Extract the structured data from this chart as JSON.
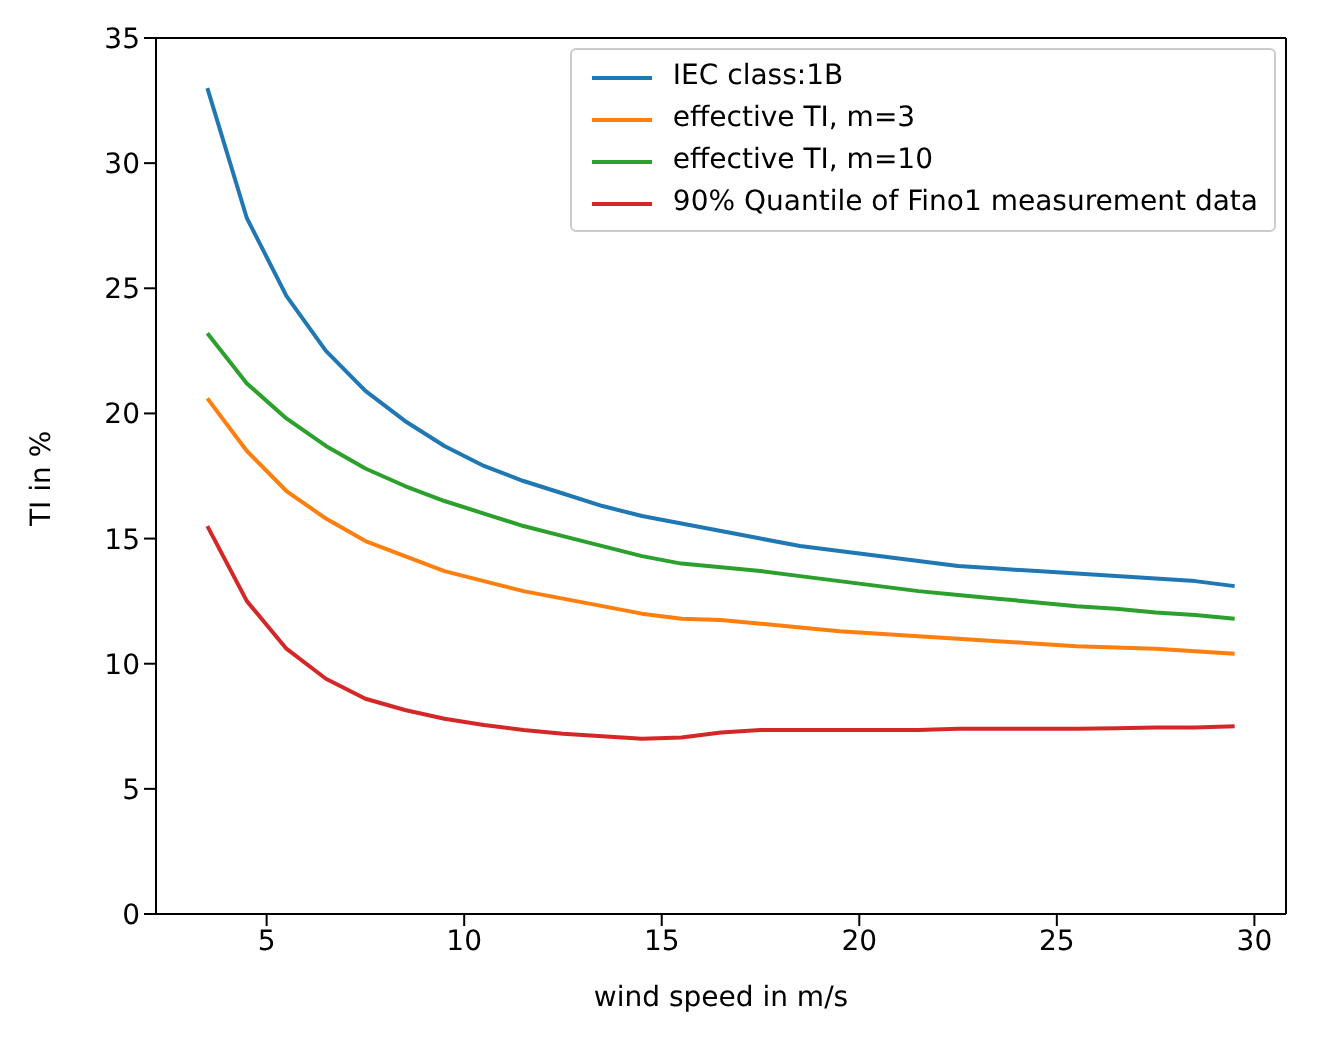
{
  "chart_data": {
    "type": "line",
    "xlabel": "wind speed in m/s",
    "ylabel": "TI in %",
    "x": [
      3.5,
      4.5,
      5.5,
      6.5,
      7.5,
      8.5,
      9.5,
      10.5,
      11.5,
      12.5,
      13.5,
      14.5,
      15.5,
      16.5,
      17.5,
      18.5,
      19.5,
      20.5,
      21.5,
      22.5,
      23.5,
      24.5,
      25.5,
      26.5,
      27.5,
      28.5,
      29.5
    ],
    "series": [
      {
        "name": "IEC class:1B",
        "color": "#1f77b4",
        "values": [
          33,
          27.8,
          24.7,
          22.5,
          20.9,
          19.7,
          18.7,
          17.9,
          17.3,
          16.8,
          16.3,
          15.9,
          15.6,
          15.3,
          15.0,
          14.7,
          14.5,
          14.3,
          14.1,
          13.9,
          13.8,
          13.7,
          13.6,
          13.5,
          13.4,
          13.3,
          13.1
        ]
      },
      {
        "name": "effective TI, m=3",
        "color": "#ff7f0e",
        "values": [
          20.6,
          18.5,
          16.9,
          15.8,
          14.9,
          14.3,
          13.7,
          13.3,
          12.9,
          12.6,
          12.3,
          12.0,
          11.8,
          11.75,
          11.6,
          11.45,
          11.3,
          11.2,
          11.1,
          11.0,
          10.9,
          10.8,
          10.7,
          10.65,
          10.6,
          10.5,
          10.4
        ]
      },
      {
        "name": "effective TI, m=10",
        "color": "#2ca02c",
        "values": [
          23.2,
          21.2,
          19.8,
          18.7,
          17.8,
          17.1,
          16.5,
          16.0,
          15.5,
          15.1,
          14.7,
          14.3,
          14.0,
          13.85,
          13.7,
          13.5,
          13.3,
          13.1,
          12.9,
          12.75,
          12.6,
          12.45,
          12.3,
          12.2,
          12.05,
          11.95,
          11.8
        ]
      },
      {
        "name": "90% Quantile of Fino1 measurement data",
        "color": "#d62728",
        "values": [
          15.5,
          12.5,
          10.6,
          9.4,
          8.6,
          8.15,
          7.8,
          7.55,
          7.35,
          7.2,
          7.1,
          7.0,
          7.05,
          7.25,
          7.35,
          7.35,
          7.35,
          7.35,
          7.35,
          7.4,
          7.4,
          7.4,
          7.4,
          7.42,
          7.45,
          7.45,
          7.5
        ]
      }
    ],
    "xlim": [
      2.2,
      30.8
    ],
    "xticks": [
      5,
      10,
      15,
      20,
      25,
      30
    ],
    "ylim": [
      0,
      35
    ],
    "yticks": [
      0,
      5,
      10,
      15,
      20,
      25,
      30,
      35
    ],
    "grid": false,
    "legend": "top right",
    "marker": "none",
    "line_style": "solid"
  }
}
